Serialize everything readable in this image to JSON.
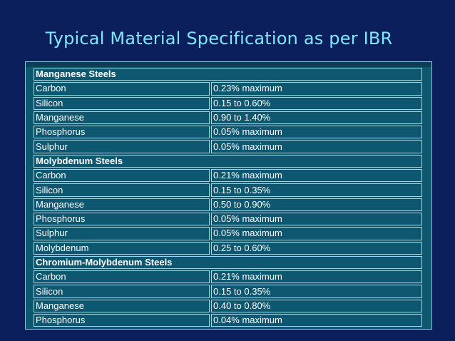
{
  "slide": {
    "title": "Typical Material Specification as per IBR"
  },
  "table": {
    "rows": [
      {
        "type": "section",
        "label": "Manganese Steels"
      },
      {
        "type": "row",
        "element": "Carbon",
        "value": "0.23% maximum"
      },
      {
        "type": "row",
        "element": "Silicon",
        "value": "0.15 to 0.60%"
      },
      {
        "type": "row",
        "element": "Manganese",
        "value": "0.90 to 1.40%"
      },
      {
        "type": "row",
        "element": "Phosphorus",
        "value": "0.05% maximum"
      },
      {
        "type": "row",
        "element": "Sulphur",
        "value": "0.05% maximum"
      },
      {
        "type": "section",
        "label": "Molybdenum Steels"
      },
      {
        "type": "row",
        "element": "Carbon",
        "value": "0.21% maximum"
      },
      {
        "type": "row",
        "element": "Silicon",
        "value": "0.15 to 0.35%"
      },
      {
        "type": "row",
        "element": "Manganese",
        "value": "0.50 to 0.90%"
      },
      {
        "type": "row",
        "element": "Phosphorus",
        "value": "0.05% maximum"
      },
      {
        "type": "row",
        "element": "Sulphur",
        "value": "0.05% maximum"
      },
      {
        "type": "row",
        "element": "Molybdenum",
        "value": "0.25 to 0.60%"
      },
      {
        "type": "section",
        "label": "Chromium-Molybdenum Steels"
      },
      {
        "type": "row",
        "element": "Carbon",
        "value": "0.21% maximum"
      },
      {
        "type": "row",
        "element": "Silicon",
        "value": "0.15 to 0.35%"
      },
      {
        "type": "row",
        "element": "Manganese",
        "value": "0.40 to 0.80%"
      },
      {
        "type": "row",
        "element": "Phosphorus",
        "value": "0.04% maximum"
      }
    ]
  },
  "colors": {
    "background": "#0b1f5c",
    "title": "#7fe6ff",
    "table_fill": "#0e5771",
    "cell_border": "#a9d3de",
    "text": "#ffffff"
  }
}
